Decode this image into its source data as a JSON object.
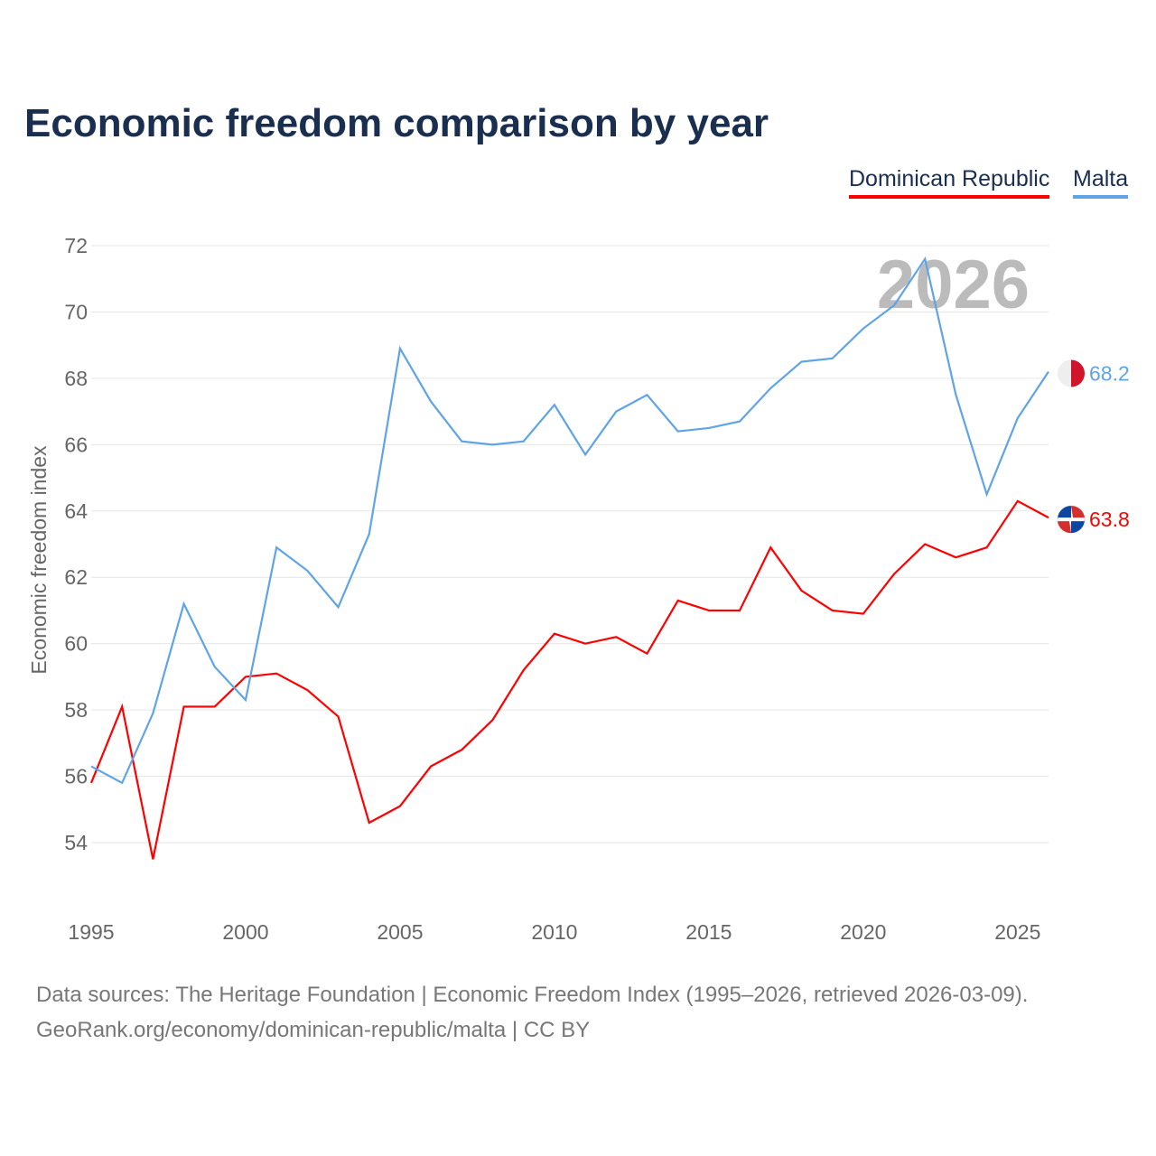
{
  "title": "Economic freedom comparison by year",
  "legend": [
    {
      "label": "Dominican Republic",
      "color": "#ff0000"
    },
    {
      "label": "Malta",
      "color": "#5fa4e8"
    }
  ],
  "chart_data": {
    "type": "line",
    "ylabel": "Economic freedom index",
    "ylim": [
      52,
      72.5
    ],
    "xlim": [
      1995,
      2026
    ],
    "yticks": [
      54,
      56,
      58,
      60,
      62,
      64,
      66,
      68,
      70,
      72
    ],
    "xticks": [
      1995,
      2000,
      2005,
      2010,
      2015,
      2020,
      2025
    ],
    "watermark": "2026",
    "x": [
      1995,
      1996,
      1997,
      1998,
      1999,
      2000,
      2001,
      2002,
      2003,
      2004,
      2005,
      2006,
      2007,
      2008,
      2009,
      2010,
      2011,
      2012,
      2013,
      2014,
      2015,
      2016,
      2017,
      2018,
      2019,
      2020,
      2021,
      2022,
      2023,
      2024,
      2025,
      2026
    ],
    "series": [
      {
        "name": "Dominican Republic",
        "color": "#ff0000",
        "end_label": "63.8",
        "values": [
          55.8,
          58.1,
          53.5,
          58.1,
          58.1,
          59.0,
          59.1,
          58.6,
          57.8,
          54.6,
          55.1,
          56.3,
          56.8,
          57.7,
          59.2,
          60.3,
          60.0,
          60.2,
          59.7,
          61.3,
          61.0,
          61.0,
          62.9,
          61.6,
          61.0,
          60.9,
          62.1,
          63.0,
          62.6,
          62.9,
          64.3,
          63.8
        ]
      },
      {
        "name": "Malta",
        "color": "#5fa4e8",
        "end_label": "68.2",
        "values": [
          56.3,
          55.8,
          57.9,
          61.2,
          59.3,
          58.3,
          62.9,
          62.2,
          61.1,
          63.3,
          68.9,
          67.3,
          66.1,
          66.0,
          66.1,
          67.2,
          65.7,
          67.0,
          67.5,
          66.4,
          66.5,
          66.7,
          67.7,
          68.5,
          68.6,
          69.5,
          70.2,
          71.6,
          67.5,
          64.5,
          66.8,
          68.2
        ]
      }
    ]
  },
  "source_line1": "Data sources: The Heritage Foundation | Economic Freedom Index (1995–2026, retrieved 2026-03-09).",
  "source_line2": "GeoRank.org/economy/dominican-republic/malta | CC BY"
}
